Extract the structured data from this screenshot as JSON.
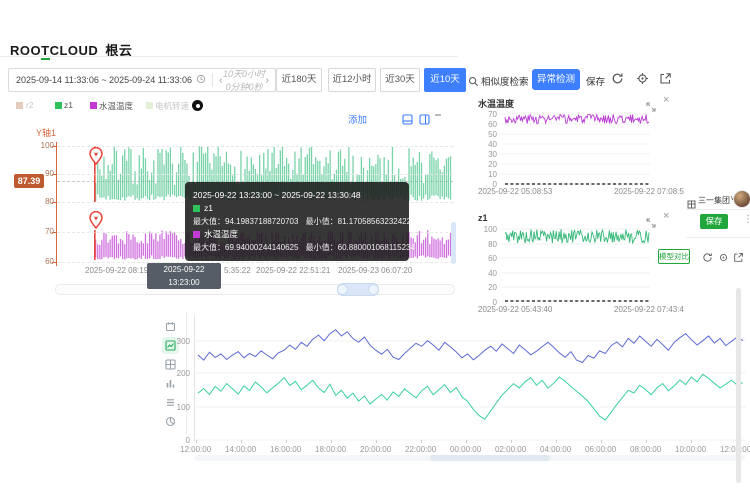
{
  "brand": {
    "logo_pre": "ROO",
    "logo_t": "T",
    "logo_post": "CLOUD",
    "logo_cn": "根云"
  },
  "toolbar": {
    "date_range": "2025-09-14 11:33:06 ~ 2025-09-24 11:33:06",
    "prev_arrow": "‹",
    "duration": "10天0小时0分钟0秒",
    "next_arrow": "›",
    "quick_ranges": [
      {
        "label": "近180天",
        "active": false
      },
      {
        "label": "近12小时",
        "active": false
      },
      {
        "label": "近30天",
        "active": false
      },
      {
        "label": "近10天",
        "active": true
      }
    ],
    "similarity_label": "相似度检索",
    "anomaly_label": "异常检测",
    "save_label": "保存",
    "accent_blue": "#3D7FFF"
  },
  "legend": {
    "items": [
      {
        "label": "r2",
        "color": "#cda287",
        "dimmed": true
      },
      {
        "label": "z1",
        "color": "#2fc25b",
        "dimmed": false
      },
      {
        "label": "水温温度",
        "color": "#c13bd4",
        "dimmed": false
      },
      {
        "label": "电机转速",
        "color": "#cfe3b8",
        "dimmed": true
      }
    ]
  },
  "main_chart": {
    "add_label": "添加",
    "y_axis_name": "Y轴1",
    "marker_value": "87.39",
    "upper_ticks": [
      "100",
      "90",
      "80"
    ],
    "lower_ticks": [
      "70",
      "60"
    ],
    "x_labels": {
      "first": "2025-09-22 08:19",
      "highlight": "2025-09-22 13:23:00",
      "second_partial": "5:35:22",
      "third": "2025-09-22 22:51:21",
      "fourth": "2025-09-23 06:07:20"
    }
  },
  "tooltip": {
    "title": "2025-09-22 13:23:00 ~ 2025-09-22 13:30:48",
    "rows": [
      {
        "name": "z1",
        "color": "#2fc25b",
        "max_label": "最大值：",
        "max_value": "94.19837188720703",
        "min_label": "最小值：",
        "min_value": "81.17058563232422"
      },
      {
        "name": "水温温度",
        "color": "#c13bd4",
        "max_label": "最大值：",
        "max_value": "69.94000244140625",
        "min_label": "最小值：",
        "min_value": "60.880001068115234"
      }
    ]
  },
  "right_charts": [
    {
      "title": "水温温度",
      "y_ticks": [
        "70",
        "60",
        "50",
        "40",
        "30",
        "20",
        "10",
        "0"
      ],
      "x_left": "2025-09-22 05:08:53",
      "x_right": "2025-09-22 07:08:5",
      "line_color": "#b93bd4"
    },
    {
      "title": "z1",
      "y_ticks": [
        "100",
        "80",
        "60",
        "40",
        "20",
        "0"
      ],
      "x_left": "2025-09-22 05:43:40",
      "x_right": "2025-09-22 07:43:4",
      "line_color": "#35b879"
    }
  ],
  "org_panel": {
    "org_name": "三一集团",
    "caret": "∨",
    "save_label": "保存",
    "more": "⋮",
    "compare_label": "模型对比",
    "green": "#21A63C"
  },
  "bottom_chart": {
    "y_ticks": [
      "300",
      "200",
      "100",
      "0"
    ],
    "x_ticks": [
      "12:00:00",
      "14:00:00",
      "16:00:00",
      "18:00:00",
      "20:00:00",
      "22:00:00",
      "00:00:00",
      "02:00:00",
      "04:00:00",
      "06:00:00",
      "08:00:00",
      "10:00:00",
      "12:00:00"
    ]
  },
  "chart_data": [
    {
      "id": "main-upper",
      "type": "range-bar",
      "series": "z1",
      "color": "#57c893",
      "axis_range": [
        80,
        100
      ],
      "x_start": "2025-09-22 08:19",
      "x_end": "2025-09-23 06:07:20",
      "marker_line": 87.39,
      "bucket_stats": {
        "bucket": "2025-09-22 13:23:00 ~ 2025-09-22 13:30:48",
        "max": 94.19837188720703,
        "min": 81.17058563232422
      },
      "noise": {
        "count": 172,
        "seed": 7,
        "low_base": 80.3,
        "low_var": 2.5,
        "high_base": 86,
        "high_var": 14
      }
    },
    {
      "id": "main-lower",
      "type": "range-bar",
      "series": "水温温度",
      "color": "#c44fd6",
      "axis_range": [
        60,
        70
      ],
      "bucket_stats": {
        "bucket": "2025-09-22 13:23:00 ~ 2025-09-22 13:30:48",
        "max": 69.94000244140625,
        "min": 60.880001068115234
      },
      "noise": {
        "count": 172,
        "seed": 13,
        "low_base": 60.15,
        "low_var": 1.4,
        "high_base": 65,
        "high_var": 5
      }
    },
    {
      "id": "mini-temp",
      "type": "line",
      "series": "水温温度",
      "color": "#b93bd4",
      "axis_range": [
        0,
        70
      ],
      "value_range": [
        60.3,
        69.7
      ],
      "x_range": [
        "2025-09-22 05:08:53",
        "2025-09-22 07:08:5"
      ],
      "noise": {
        "count": 150,
        "seed": 3
      }
    },
    {
      "id": "mini-z1",
      "type": "line",
      "series": "z1",
      "color": "#35b879",
      "axis_range": [
        0,
        100
      ],
      "value_range": [
        80.4,
        99.6
      ],
      "x_range": [
        "2025-09-22 05:43:40",
        "2025-09-22 07:43:4"
      ],
      "noise": {
        "count": 150,
        "seed": 5
      }
    },
    {
      "id": "bottom-trend",
      "type": "line",
      "ylim": [
        0,
        380
      ],
      "x_ticks": [
        "12:00:00",
        "14:00:00",
        "16:00:00",
        "18:00:00",
        "20:00:00",
        "22:00:00",
        "00:00:00",
        "02:00:00",
        "04:00:00",
        "06:00:00",
        "08:00:00",
        "10:00:00",
        "12:00:00"
      ],
      "series": [
        {
          "name": "series-indigo",
          "color": "#5f6bd0",
          "values": [
            258,
            242,
            266,
            250,
            261,
            244,
            257,
            268,
            249,
            262,
            253,
            270,
            258,
            246,
            264,
            272,
            288,
            275,
            296,
            284,
            305,
            318,
            301,
            322,
            334,
            315,
            328,
            308,
            296,
            312,
            287,
            272,
            260,
            275,
            251,
            244,
            262,
            278,
            293,
            284,
            301,
            288,
            272,
            296,
            282,
            267,
            249,
            261,
            243,
            256,
            272,
            284,
            269,
            291,
            277,
            262,
            288,
            274,
            258,
            269,
            283,
            296,
            281,
            264,
            251,
            268,
            242,
            235,
            256,
            248,
            270,
            262,
            286,
            297,
            282,
            308,
            293,
            315,
            299,
            284,
            305,
            289,
            272,
            296,
            310,
            322,
            304,
            288,
            301,
            315,
            294,
            308,
            286,
            299,
            312,
            301
          ]
        },
        {
          "name": "series-teal",
          "color": "#3bcfa4",
          "values": [
            142,
            156,
            138,
            162,
            148,
            171,
            155,
            139,
            164,
            150,
            176,
            161,
            143,
            158,
            172,
            189,
            165,
            178,
            152,
            166,
            181,
            158,
            144,
            169,
            135,
            151,
            127,
            142,
            118,
            133,
            109,
            124,
            138,
            121,
            146,
            132,
            155,
            141,
            128,
            149,
            163,
            137,
            152,
            168,
            144,
            159,
            131,
            117,
            92,
            74,
            63,
            88,
            112,
            136,
            154,
            171,
            158,
            176,
            189,
            166,
            181,
            157,
            172,
            191,
            178,
            162,
            148,
            133,
            117,
            95,
            72,
            61,
            84,
            108,
            129,
            151,
            142,
            166,
            153,
            137,
            158,
            171,
            149,
            164,
            182,
            168,
            191,
            176,
            199,
            187,
            172,
            158,
            169,
            181,
            166,
            174
          ]
        }
      ]
    }
  ]
}
